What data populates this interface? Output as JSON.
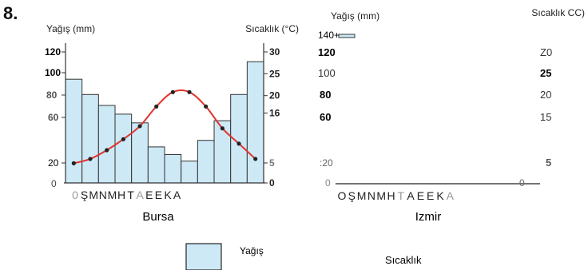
{
  "question_number": "8.",
  "chart_data": [
    {
      "type": "bar",
      "xlabel": "Bursa",
      "ylabel_left": "Yağış (mm)",
      "ylabel_right": "Sıcaklık (°C)",
      "left_ticks": [
        "120",
        "100",
        "80",
        "60",
        "20",
        "0"
      ],
      "right_ticks": [
        "30",
        "25",
        "20",
        "16",
        "5",
        "0"
      ],
      "right_tick_values": [
        30,
        25,
        20,
        16,
        5,
        0
      ],
      "ylim_left": [
        0,
        140
      ],
      "ylim_right": [
        0,
        30
      ],
      "categories": [
        "0",
        "Ş",
        "M",
        "N",
        "M",
        "H",
        "T",
        "A",
        "E",
        "E",
        "K",
        "A"
      ],
      "series": [
        {
          "name": "Yağış",
          "kind": "bar",
          "axis": "left",
          "values": [
            95,
            81,
            71,
            63,
            55,
            33,
            26,
            20,
            39,
            57,
            81,
            111
          ]
        },
        {
          "name": "Sıcaklık",
          "kind": "line",
          "axis": "right",
          "values": [
            4.5,
            5.5,
            7.5,
            10,
            13,
            17.5,
            20.8,
            20.8,
            17.5,
            12.5,
            9,
            5.5
          ]
        }
      ],
      "colors": {
        "bar_fill": "#cde9f6",
        "bar_stroke": "#333333",
        "line": "#e0332c",
        "marker": "#222222"
      }
    },
    {
      "type": "bar",
      "xlabel": "Izmir",
      "ylabel_left": "Yağış (mm)",
      "ylabel_right": "Sıcaklık CC)",
      "left_ticks": [
        "140+",
        "120",
        "100",
        "80",
        "60",
        ":20",
        "0"
      ],
      "right_ticks": [
        "Z0",
        "25",
        "20",
        "15",
        "5"
      ],
      "categories": [
        "O",
        "Ş",
        "M",
        "N",
        "M",
        "H",
        "T",
        "A",
        "E",
        "E",
        "K",
        "A"
      ],
      "series": []
    }
  ],
  "legend": {
    "bar_label": "Yağış",
    "line_label": "Sıcaklık"
  }
}
